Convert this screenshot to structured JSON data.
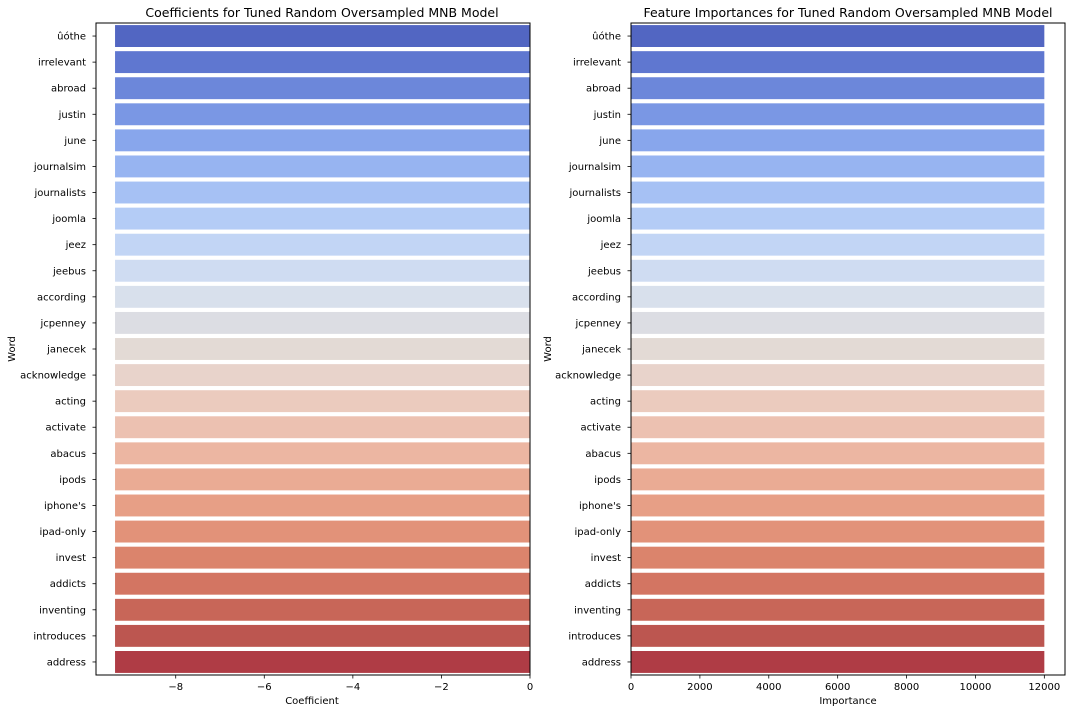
{
  "chart_data": [
    {
      "type": "bar",
      "orientation": "horizontal",
      "title": "Coefficients for Tuned Random Oversampled MNB Model",
      "xlabel": "Coefficient",
      "ylabel": "Word",
      "xlim": [
        -9.8,
        0
      ],
      "xticks": [
        -8,
        -6,
        -4,
        -2,
        0
      ],
      "xtick_labels": [
        "−8",
        "−6",
        "−4",
        "−2",
        "0"
      ],
      "grid": false,
      "categories": [
        "ûóthe",
        "irrelevant",
        "abroad",
        "justin",
        "june",
        "journalsim",
        "journalists",
        "joomla",
        "jeez",
        "jeebus",
        "according",
        "jcpenney",
        "janecek",
        "acknowledge",
        "acting",
        "activate",
        "abacus",
        "ipods",
        "iphone's",
        "ipad-only",
        "invest",
        "addicts",
        "inventing",
        "introduces",
        "address"
      ],
      "values": [
        -9.37,
        -9.37,
        -9.37,
        -9.37,
        -9.37,
        -9.37,
        -9.37,
        -9.37,
        -9.37,
        -9.37,
        -9.37,
        -9.37,
        -9.37,
        -9.37,
        -9.37,
        -9.37,
        -9.37,
        -9.37,
        -9.37,
        -9.37,
        -9.37,
        -9.37,
        -9.37,
        -9.37,
        -9.37
      ]
    },
    {
      "type": "bar",
      "orientation": "horizontal",
      "title": "Feature Importances for Tuned Random Oversampled MNB Model",
      "xlabel": "Importance",
      "ylabel": "Word",
      "xlim": [
        0,
        12600
      ],
      "xticks": [
        0,
        2000,
        4000,
        6000,
        8000,
        10000,
        12000
      ],
      "xtick_labels": [
        "0",
        "2000",
        "4000",
        "6000",
        "8000",
        "10000",
        "12000"
      ],
      "grid": false,
      "categories": [
        "ûóthe",
        "irrelevant",
        "abroad",
        "justin",
        "june",
        "journalsim",
        "journalists",
        "joomla",
        "jeez",
        "jeebus",
        "according",
        "jcpenney",
        "janecek",
        "acknowledge",
        "acting",
        "activate",
        "abacus",
        "ipods",
        "iphone's",
        "ipad-only",
        "invest",
        "addicts",
        "inventing",
        "introduces",
        "address"
      ],
      "values": [
        12000,
        12000,
        12000,
        12000,
        12000,
        12000,
        12000,
        12000,
        12000,
        12000,
        12000,
        12000,
        12000,
        12000,
        12000,
        12000,
        12000,
        12000,
        12000,
        12000,
        12000,
        12000,
        12000,
        12000,
        12000
      ]
    }
  ],
  "palette": [
    "#5266c2",
    "#5f77d0",
    "#6c87da",
    "#7a97e4",
    "#88a6ec",
    "#97b4f1",
    "#a6c1f4",
    "#b4ccf6",
    "#c2d5f5",
    "#cfdcf2",
    "#d8e0ec",
    "#dcdde3",
    "#e3dad5",
    "#e8d3cb",
    "#ebcbbe",
    "#ecc1b1",
    "#ecb6a2",
    "#eaab94",
    "#e79f86",
    "#e29279",
    "#db846c",
    "#d37562",
    "#c86658",
    "#bc5650",
    "#af3c45"
  ]
}
